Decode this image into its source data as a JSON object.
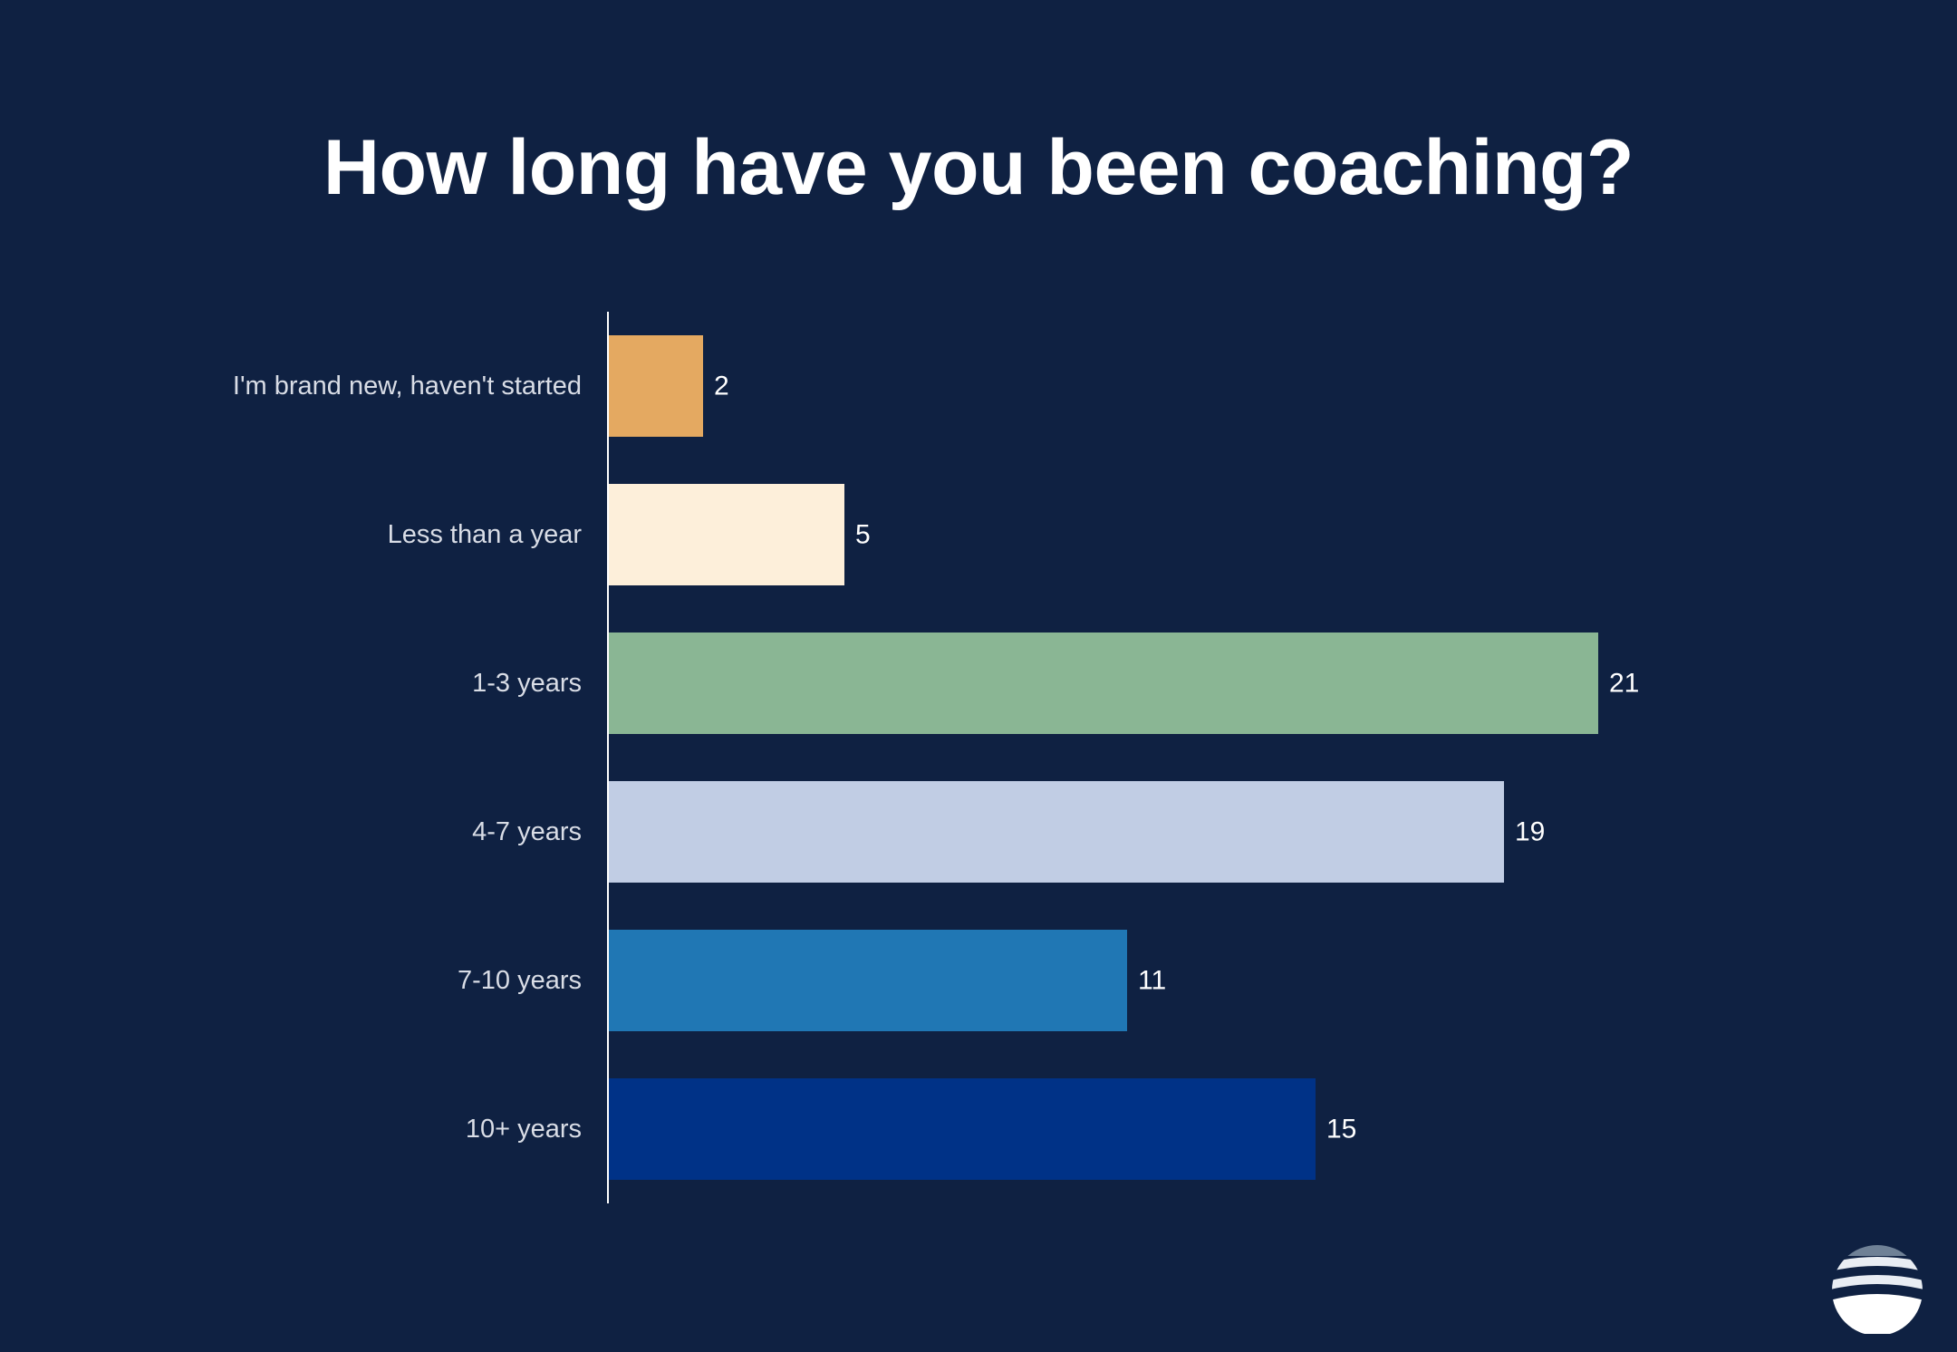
{
  "chart_data": {
    "type": "bar",
    "orientation": "horizontal",
    "title": "How long have you been coaching?",
    "categories": [
      "I'm brand new, haven't started",
      "Less than a year",
      "1-3 years",
      "4-7 years",
      "7-10 years",
      "10+ years"
    ],
    "values": [
      2,
      5,
      21,
      19,
      11,
      15
    ],
    "colors": [
      "#e4a961",
      "#fdefda",
      "#8ab694",
      "#c1cde4",
      "#2077b4",
      "#003287"
    ],
    "xlim": [
      0,
      22
    ],
    "grid": false,
    "legend": "none"
  },
  "colors": {
    "background": "#0f2142",
    "axis_line": "#ffffff"
  },
  "logo": {
    "icon": "wave-sun-icon"
  }
}
